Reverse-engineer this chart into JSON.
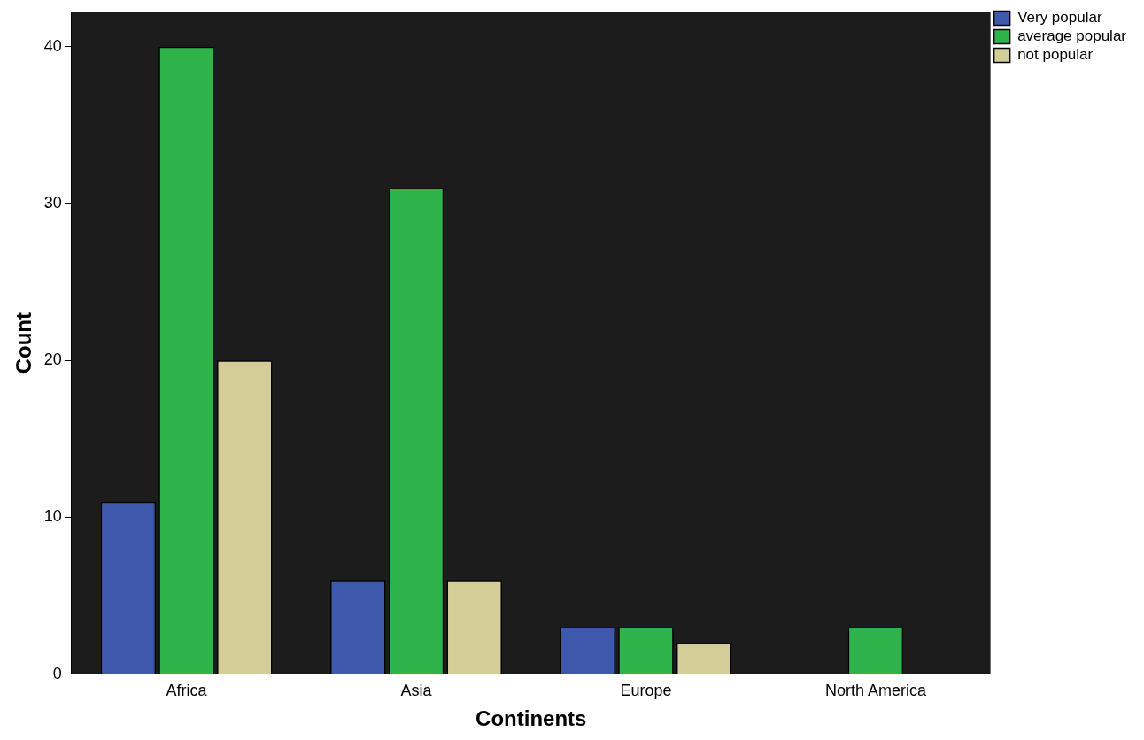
{
  "chart_data": {
    "type": "bar",
    "xlabel": "Continents",
    "ylabel": "Count",
    "categories": [
      "Africa",
      "Asia",
      "Europe",
      "North America"
    ],
    "series": [
      {
        "name": "Very popular",
        "color": "#3e58ac",
        "values": [
          11,
          6,
          3,
          null
        ]
      },
      {
        "name": "average popular",
        "color": "#2db34a",
        "values": [
          40,
          31,
          3,
          3
        ]
      },
      {
        "name": "not popular",
        "color": "#d4cd98",
        "values": [
          20,
          6,
          2,
          null
        ]
      }
    ],
    "ylim": [
      0,
      42.2
    ],
    "yticks": [
      0,
      10,
      20,
      30,
      40
    ],
    "grid": false,
    "legend": "top right"
  }
}
